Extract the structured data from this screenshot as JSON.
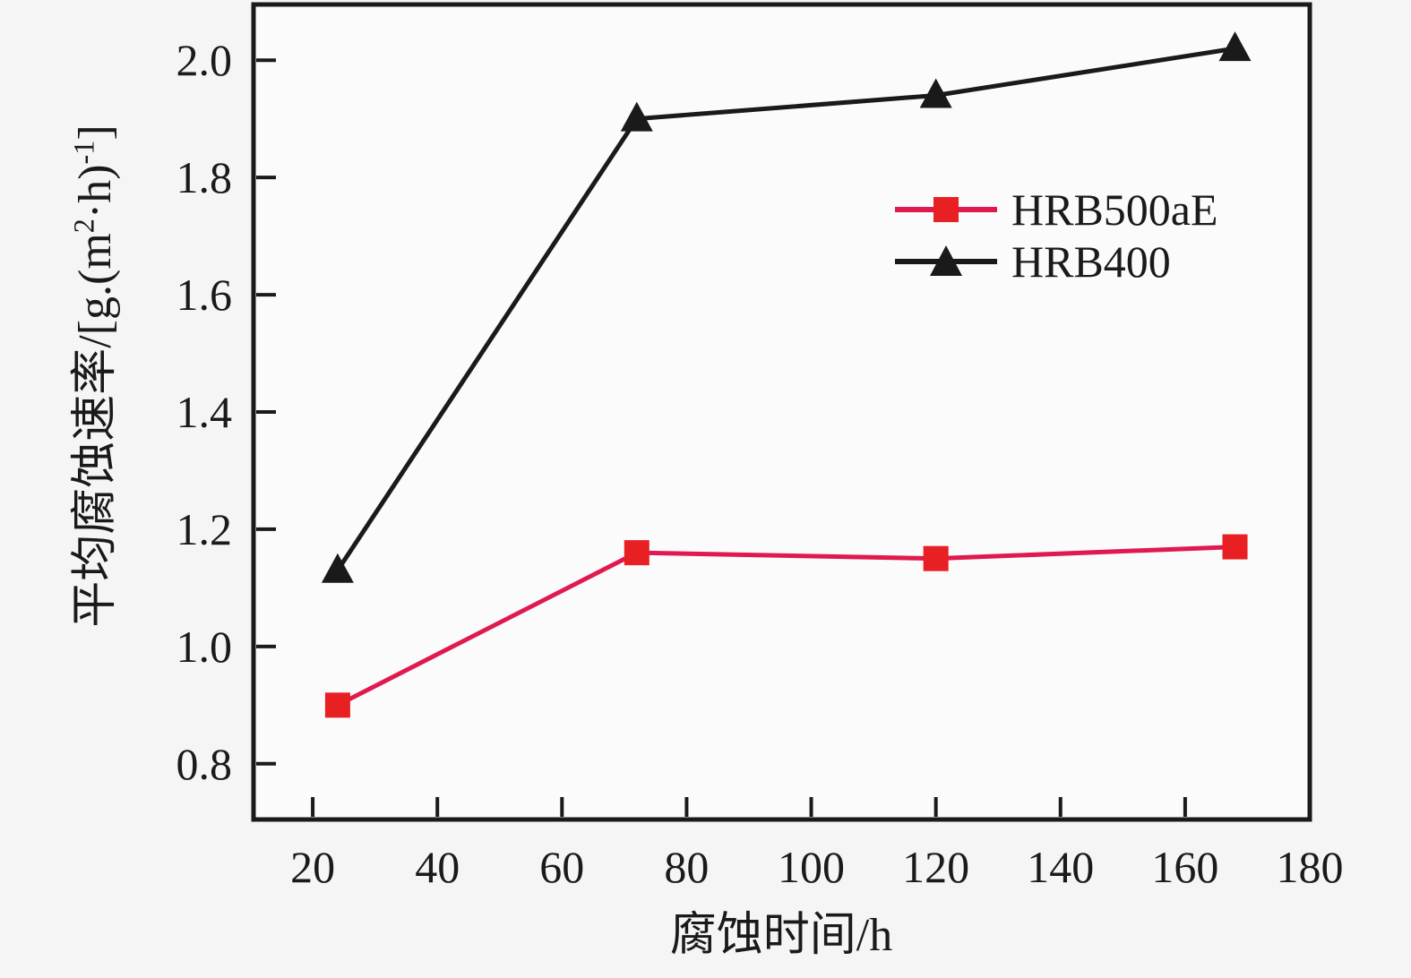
{
  "chart_data": {
    "type": "line",
    "x": [
      24,
      72,
      120,
      168
    ],
    "series": [
      {
        "name": "HRB500aE",
        "values": [
          0.9,
          1.16,
          1.15,
          1.17
        ],
        "line_color": "#e0194e",
        "marker": "square",
        "marker_color": "#e81f23"
      },
      {
        "name": "HRB400",
        "values": [
          1.13,
          1.9,
          1.94,
          2.02
        ],
        "line_color": "#1a1a1a",
        "marker": "triangle",
        "marker_color": "#1a1a1a"
      }
    ],
    "title": "",
    "xlabel": "腐蚀时间/h",
    "ylabel": "平均腐蚀速率/[g.(m²·h)⁻¹]",
    "ylabel_parts": {
      "p1": "平均腐蚀速率/[g.(m",
      "sup1": "2",
      "p2": "·h)",
      "sup2": "-1",
      "p3": "]"
    },
    "x_ticks": [
      "20",
      "40",
      "60",
      "80",
      "100",
      "120",
      "140",
      "160",
      "180"
    ],
    "y_ticks": [
      "0.8",
      "1.0",
      "1.2",
      "1.4",
      "1.6",
      "1.8",
      "2.0"
    ],
    "xlim": [
      10.5,
      180
    ],
    "ylim": [
      0.705,
      2.095
    ],
    "grid": false,
    "legend_position": "upper-right-inside",
    "axis_color": "#1a1a1a",
    "plot_bg": "#fbfbfb"
  }
}
